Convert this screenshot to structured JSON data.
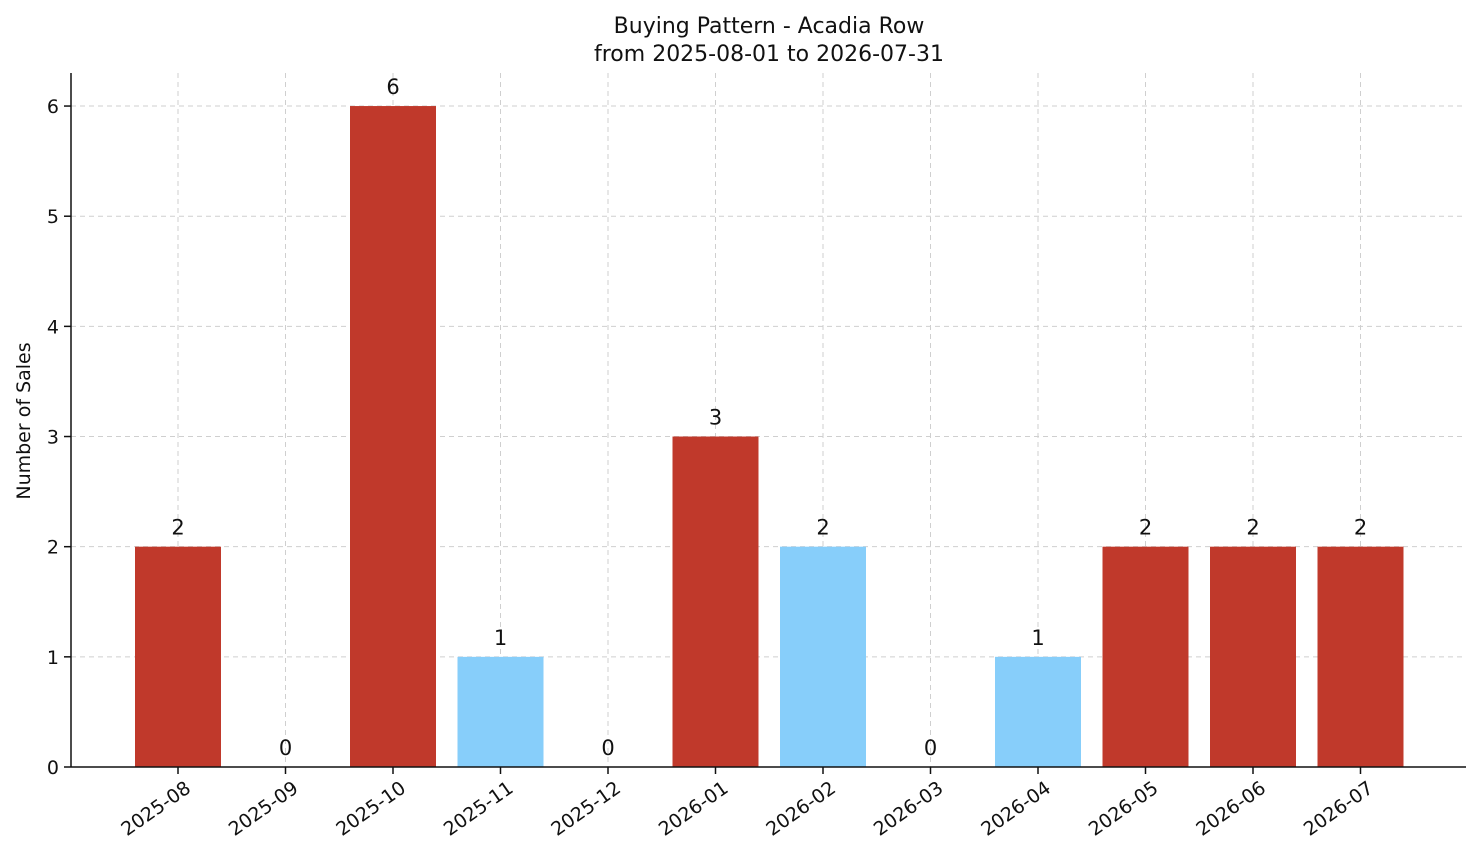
{
  "chart_data": {
    "type": "bar",
    "title": "Buying Pattern - Acadia Row",
    "subtitle": "from 2025-08-01 to 2026-07-31",
    "xlabel": "",
    "ylabel": "Number of Sales",
    "categories": [
      "2025-08",
      "2025-09",
      "2025-10",
      "2025-11",
      "2025-12",
      "2026-01",
      "2026-02",
      "2026-03",
      "2026-04",
      "2026-05",
      "2026-06",
      "2026-07"
    ],
    "values": [
      2,
      0,
      6,
      1,
      0,
      3,
      2,
      0,
      1,
      2,
      2,
      2
    ],
    "bar_colors": [
      "#c0392b",
      "#c0392b",
      "#c0392b",
      "#87cefa",
      "#c0392b",
      "#c0392b",
      "#87cefa",
      "#c0392b",
      "#87cefa",
      "#c0392b",
      "#c0392b",
      "#c0392b"
    ],
    "ylim": [
      0,
      6.3
    ],
    "yticks": [
      0,
      1,
      2,
      3,
      4,
      5,
      6
    ],
    "grid": true,
    "data_labels": true,
    "legend": "none"
  }
}
